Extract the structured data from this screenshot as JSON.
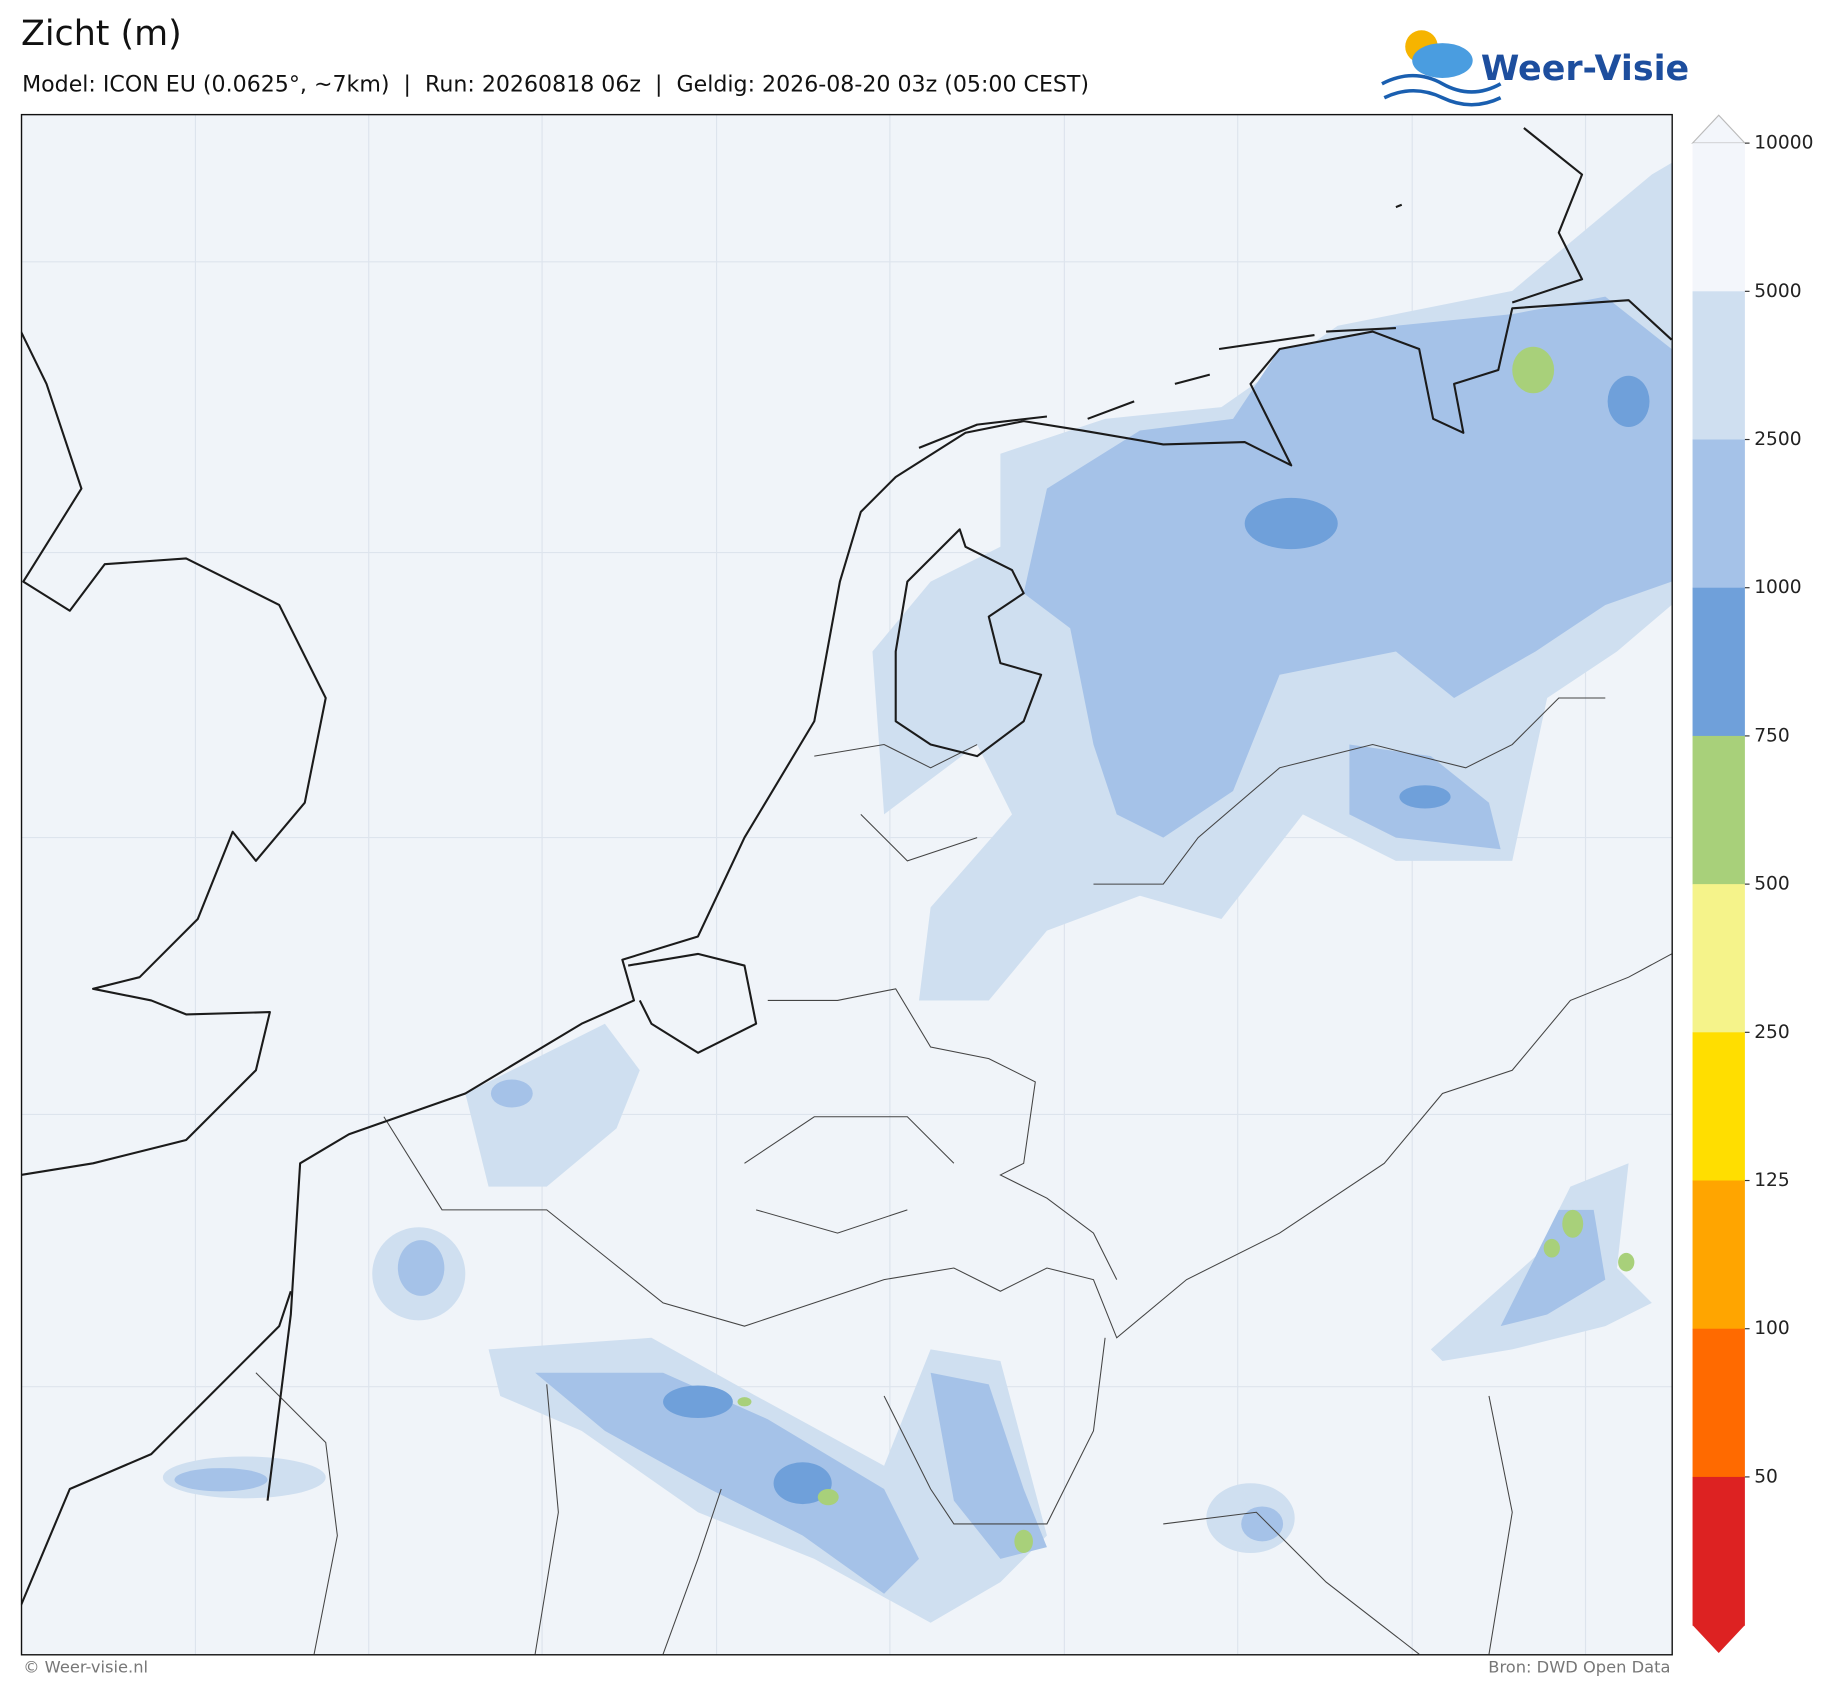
{
  "header": {
    "title": "Zicht (m)",
    "subtitle": "Model: ICON EU (0.0625°, ~7km)  |  Run: 20260818 06z  |  Geldig: 2026-08-20 03z (05:00 CEST)",
    "logo": "Weer-Visie"
  },
  "colorbar": {
    "labels": [
      10000,
      5000,
      2500,
      1000,
      750,
      500,
      250,
      125,
      100,
      50
    ],
    "colors": [
      "#f3f6fb",
      "#cfdff0",
      "#a5c2e8",
      "#6fa0da",
      "#a8d07a",
      "#f5f38a",
      "#ffde00",
      "#ffa500",
      "#ff6a00",
      "#dd2222"
    ]
  },
  "footer": {
    "left": "© Weer-visie.nl",
    "right": "Bron: DWD Open Data"
  }
}
